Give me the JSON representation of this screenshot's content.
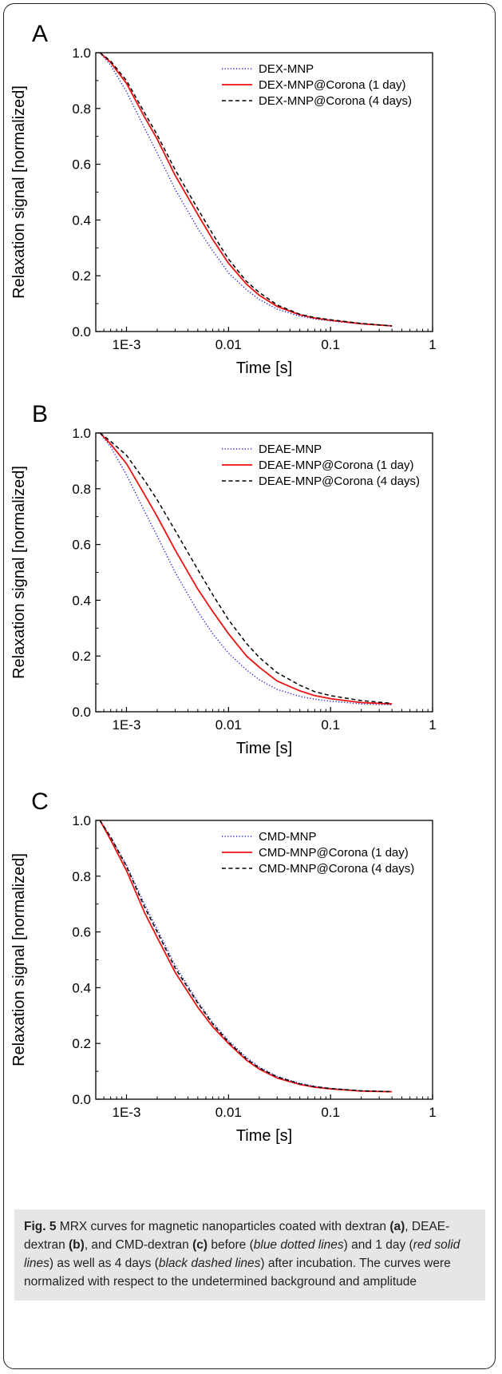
{
  "chart_data": [
    {
      "type": "line",
      "panel": "A",
      "xlabel": "Time [s]",
      "ylabel": "Relaxation signal [normalized]",
      "xscale": "log",
      "xlim": [
        0.0005,
        1
      ],
      "ylim": [
        0,
        1
      ],
      "xticks": [
        {
          "v": 0.001,
          "label": "1E-3"
        },
        {
          "v": 0.01,
          "label": "0.01"
        },
        {
          "v": 0.1,
          "label": "0.1"
        },
        {
          "v": 1,
          "label": "1"
        }
      ],
      "yticks": [
        0.0,
        0.2,
        0.4,
        0.6,
        0.8,
        1.0
      ],
      "ytick_labels": [
        "0.0",
        "0.2",
        "0.4",
        "0.6",
        "0.8",
        "1.0"
      ],
      "legend_position": "top-right",
      "series": [
        {
          "name": "DEX-MNP",
          "style": "dotted",
          "color": "#2222dd",
          "x": [
            0.00055,
            0.0007,
            0.001,
            0.0015,
            0.002,
            0.003,
            0.005,
            0.007,
            0.01,
            0.015,
            0.02,
            0.03,
            0.05,
            0.07,
            0.1,
            0.2,
            0.4
          ],
          "y": [
            1.0,
            0.955,
            0.86,
            0.73,
            0.64,
            0.51,
            0.37,
            0.29,
            0.21,
            0.15,
            0.115,
            0.08,
            0.055,
            0.045,
            0.038,
            0.027,
            0.02
          ]
        },
        {
          "name": "DEX-MNP@Corona (1 day)",
          "style": "solid",
          "color": "#ee1111",
          "x": [
            0.00055,
            0.0007,
            0.001,
            0.0015,
            0.002,
            0.003,
            0.005,
            0.007,
            0.01,
            0.015,
            0.02,
            0.03,
            0.05,
            0.07,
            0.1,
            0.2,
            0.4
          ],
          "y": [
            1.0,
            0.965,
            0.89,
            0.77,
            0.69,
            0.56,
            0.42,
            0.33,
            0.245,
            0.17,
            0.13,
            0.09,
            0.06,
            0.048,
            0.04,
            0.028,
            0.02
          ]
        },
        {
          "name": "DEX-MNP@Corona (4 days)",
          "style": "dashed",
          "color": "#000000",
          "x": [
            0.00055,
            0.0007,
            0.001,
            0.0015,
            0.002,
            0.003,
            0.005,
            0.007,
            0.01,
            0.015,
            0.02,
            0.03,
            0.05,
            0.07,
            0.1,
            0.2,
            0.4
          ],
          "y": [
            1.0,
            0.97,
            0.9,
            0.785,
            0.705,
            0.58,
            0.44,
            0.35,
            0.26,
            0.18,
            0.14,
            0.095,
            0.062,
            0.05,
            0.042,
            0.029,
            0.02
          ]
        }
      ]
    },
    {
      "type": "line",
      "panel": "B",
      "xlabel": "Time [s]",
      "ylabel": "Relaxation signal [normalized]",
      "xscale": "log",
      "xlim": [
        0.0005,
        1
      ],
      "ylim": [
        0,
        1
      ],
      "xticks": [
        {
          "v": 0.001,
          "label": "1E-3"
        },
        {
          "v": 0.01,
          "label": "0.01"
        },
        {
          "v": 0.1,
          "label": "0.1"
        },
        {
          "v": 1,
          "label": "1"
        }
      ],
      "yticks": [
        0.0,
        0.2,
        0.4,
        0.6,
        0.8,
        1.0
      ],
      "ytick_labels": [
        "0.0",
        "0.2",
        "0.4",
        "0.6",
        "0.8",
        "1.0"
      ],
      "legend_position": "top-right",
      "series": [
        {
          "name": "DEAE-MNP",
          "style": "dotted",
          "color": "#2222dd",
          "x": [
            0.00055,
            0.0007,
            0.001,
            0.0015,
            0.002,
            0.003,
            0.005,
            0.007,
            0.01,
            0.015,
            0.02,
            0.03,
            0.05,
            0.07,
            0.1,
            0.2,
            0.4
          ],
          "y": [
            1.0,
            0.95,
            0.85,
            0.72,
            0.63,
            0.5,
            0.36,
            0.28,
            0.21,
            0.15,
            0.115,
            0.08,
            0.055,
            0.045,
            0.038,
            0.028,
            0.025
          ]
        },
        {
          "name": "DEAE-MNP@Corona (1 day)",
          "style": "solid",
          "color": "#ee1111",
          "x": [
            0.00055,
            0.0007,
            0.001,
            0.0015,
            0.002,
            0.003,
            0.005,
            0.007,
            0.01,
            0.015,
            0.02,
            0.03,
            0.05,
            0.07,
            0.1,
            0.2,
            0.4
          ],
          "y": [
            1.0,
            0.96,
            0.89,
            0.78,
            0.7,
            0.58,
            0.44,
            0.36,
            0.28,
            0.2,
            0.16,
            0.11,
            0.075,
            0.058,
            0.047,
            0.033,
            0.028
          ]
        },
        {
          "name": "DEAE-MNP@Corona (4 days)",
          "style": "dashed",
          "color": "#000000",
          "x": [
            0.00055,
            0.0007,
            0.001,
            0.0015,
            0.002,
            0.003,
            0.005,
            0.007,
            0.01,
            0.015,
            0.02,
            0.03,
            0.05,
            0.07,
            0.1,
            0.2,
            0.4
          ],
          "y": [
            1.0,
            0.97,
            0.92,
            0.83,
            0.76,
            0.65,
            0.51,
            0.42,
            0.33,
            0.245,
            0.195,
            0.14,
            0.095,
            0.072,
            0.058,
            0.04,
            0.03
          ]
        }
      ]
    },
    {
      "type": "line",
      "panel": "C",
      "xlabel": "Time [s]",
      "ylabel": "Relaxation signal [normalized]",
      "xscale": "log",
      "xlim": [
        0.0005,
        1
      ],
      "ylim": [
        0,
        1
      ],
      "xticks": [
        {
          "v": 0.001,
          "label": "1E-3"
        },
        {
          "v": 0.01,
          "label": "0.01"
        },
        {
          "v": 0.1,
          "label": "0.1"
        },
        {
          "v": 1,
          "label": "1"
        }
      ],
      "yticks": [
        0.0,
        0.2,
        0.4,
        0.6,
        0.8,
        1.0
      ],
      "ytick_labels": [
        "0.0",
        "0.2",
        "0.4",
        "0.6",
        "0.8",
        "1.0"
      ],
      "legend_position": "top-right",
      "series": [
        {
          "name": "CMD-MNP",
          "style": "dotted",
          "color": "#2222dd",
          "x": [
            0.00055,
            0.0007,
            0.001,
            0.0015,
            0.002,
            0.003,
            0.005,
            0.007,
            0.01,
            0.015,
            0.02,
            0.03,
            0.05,
            0.07,
            0.1,
            0.2,
            0.4
          ],
          "y": [
            1.0,
            0.94,
            0.84,
            0.7,
            0.61,
            0.48,
            0.35,
            0.275,
            0.21,
            0.15,
            0.115,
            0.082,
            0.057,
            0.046,
            0.039,
            0.03,
            0.027
          ]
        },
        {
          "name": "CMD-MNP@Corona (1 day)",
          "style": "solid",
          "color": "#ee1111",
          "x": [
            0.00055,
            0.0007,
            0.001,
            0.0015,
            0.002,
            0.003,
            0.005,
            0.007,
            0.01,
            0.015,
            0.02,
            0.03,
            0.05,
            0.07,
            0.1,
            0.2,
            0.4
          ],
          "y": [
            1.0,
            0.93,
            0.82,
            0.67,
            0.58,
            0.455,
            0.33,
            0.26,
            0.2,
            0.14,
            0.108,
            0.076,
            0.053,
            0.043,
            0.037,
            0.029,
            0.027
          ]
        },
        {
          "name": "CMD-MNP@Corona (4 days)",
          "style": "dashed",
          "color": "#000000",
          "x": [
            0.00055,
            0.0007,
            0.001,
            0.0015,
            0.002,
            0.003,
            0.005,
            0.007,
            0.01,
            0.015,
            0.02,
            0.03,
            0.05,
            0.07,
            0.1,
            0.2,
            0.4
          ],
          "y": [
            1.0,
            0.94,
            0.835,
            0.69,
            0.6,
            0.47,
            0.345,
            0.27,
            0.205,
            0.145,
            0.112,
            0.08,
            0.055,
            0.045,
            0.038,
            0.03,
            0.027
          ]
        }
      ]
    }
  ],
  "caption": {
    "label": "Fig. 5",
    "t1": " MRX curves for magnetic nanoparticles coated with dextran ",
    "a": "(a)",
    "t2": ", DEAE-dextran ",
    "b": "(b)",
    "t3": ", and CMD-dextran ",
    "c": "(c)",
    "t4": " before (",
    "blue": "blue dotted lines",
    "t5": ") and 1 day (",
    "red": "red solid lines",
    "t6": ") as well as 4 days (",
    "black": "black dashed lines",
    "t7": ") after incubation. The curves were normalized with respect to the undetermined background and amplitude"
  }
}
